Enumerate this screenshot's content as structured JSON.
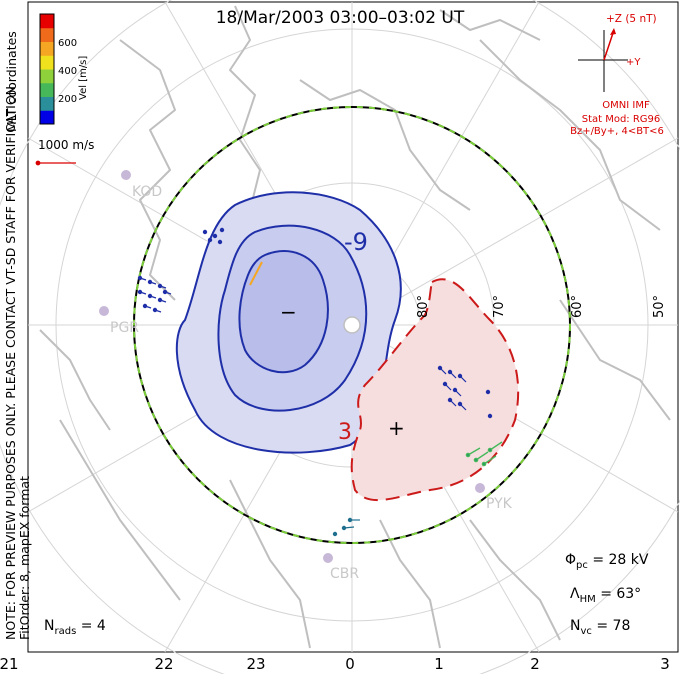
{
  "title": "18/Mar/2003 03:00–03:02 UT",
  "side_note_lines": [
    "NOTE: FOR PREVIEW PURPOSES ONLY. PLEASE CONTACT VT-SD STAFF FOR VERIFICATION.",
    "FitOrder: 8, mapEX format"
  ],
  "coordinate_label": "MLT coordinates",
  "colorbar": {
    "title": "Vel [m/s]",
    "ticks": [
      "600",
      "400",
      "200"
    ],
    "colors": [
      "#0000e6",
      "#2a8f9a",
      "#46b85a",
      "#8fd13a",
      "#f0e11e",
      "#f5a623",
      "#f06a1c",
      "#e60000"
    ]
  },
  "scale_vector_label": "1000 m/s",
  "imf": {
    "axis_z_label": "+Z (5 nT)",
    "axis_y_label": "+Y",
    "source": "OMNI IMF",
    "model": "Stat Mod: RG96",
    "condition": "Bz+/By+, 4<BT<6"
  },
  "stats": {
    "phi_symbol": "Φ",
    "phi_sub": "pc",
    "phi_value": "= 28 kV",
    "lambda_symbol": "Λ",
    "lambda_sub": "HM",
    "lambda_value": "= 63°",
    "nvc_symbol": "N",
    "nvc_sub": "vc",
    "nvc_value": "= 78",
    "nrads_symbol": "N",
    "nrads_sub": "rads",
    "nrads_value": "= 4"
  },
  "mlt_ticks": [
    "21",
    "22",
    "23",
    "0",
    "1",
    "2",
    "3"
  ],
  "latitude_labels": [
    "80°",
    "70°",
    "60°",
    "50°"
  ],
  "stations": [
    "KOD",
    "PGR",
    "PYK",
    "CBR"
  ],
  "contour_labels": {
    "negative": "-9",
    "positive": "3"
  },
  "cell_symbols": {
    "negative": "−",
    "positive": "+"
  },
  "colors": {
    "neg_contour": "#1f2fa8",
    "neg_fill": "#d9dbf3",
    "neg_fill_inner": "#b8bdea",
    "pos_contour": "#cc1a1a",
    "pos_fill": "#f6dede",
    "hm_boundary_dash": "#7ccf3a",
    "coast": "#bfbfbf",
    "grid": "#d5d5d5",
    "imf_red": "#d90000"
  }
}
